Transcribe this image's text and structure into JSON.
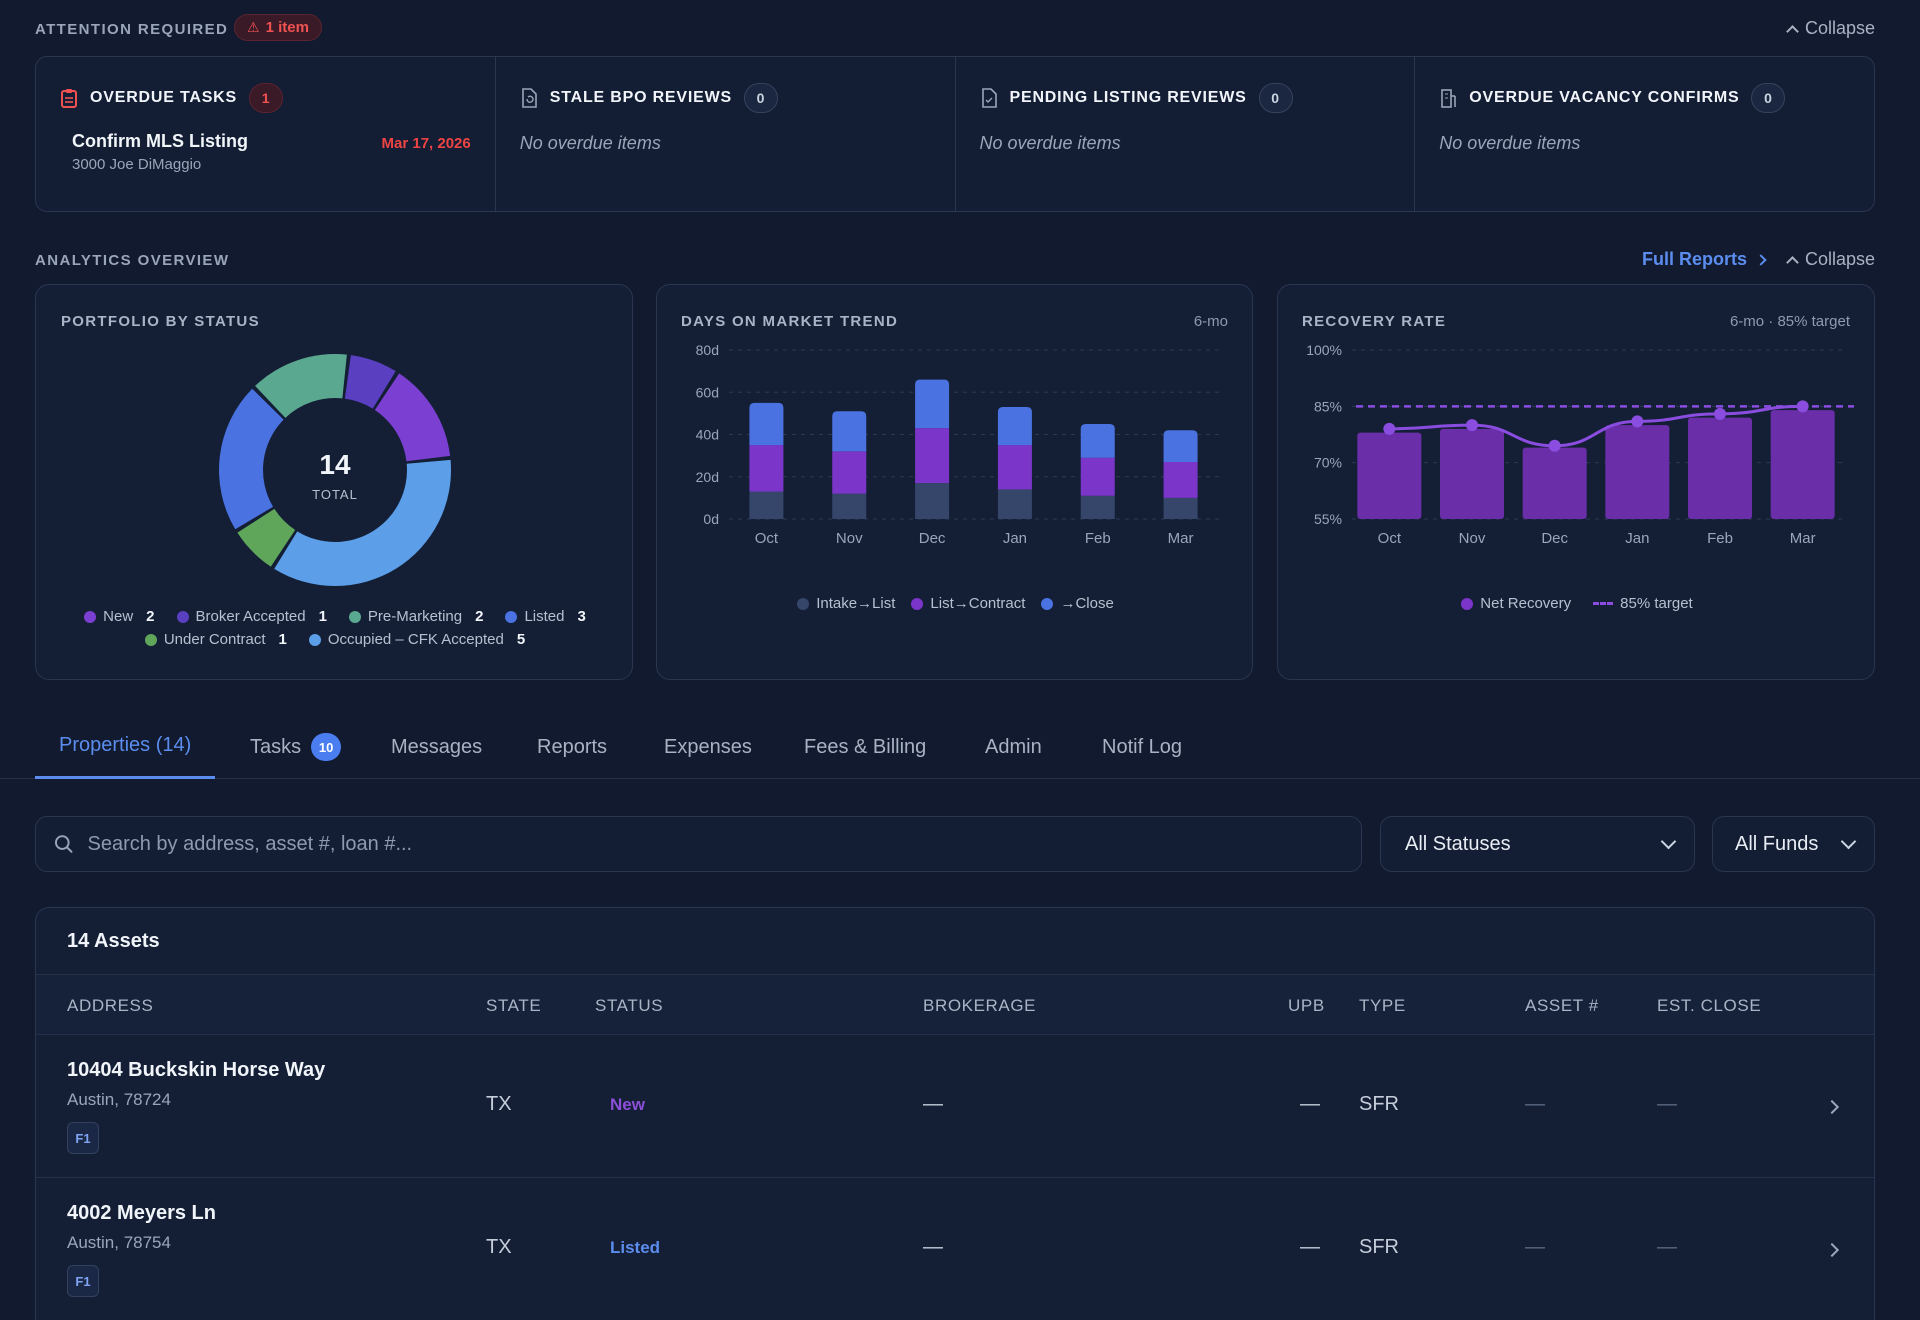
{
  "attention": {
    "label": "ATTENTION REQUIRED",
    "badge": "1 item",
    "collapse": "Collapse",
    "columns": [
      {
        "title": "OVERDUE TASKS",
        "count": "1",
        "icon": "clipboard-icon"
      },
      {
        "title": "STALE BPO REVIEWS",
        "count": "0",
        "icon": "document-refresh-icon",
        "empty": "No overdue items"
      },
      {
        "title": "PENDING LISTING REVIEWS",
        "count": "0",
        "icon": "document-check-icon",
        "empty": "No overdue items"
      },
      {
        "title": "OVERDUE VACANCY CONFIRMS",
        "count": "0",
        "icon": "building-icon",
        "empty": "No overdue items"
      }
    ],
    "task": {
      "title": "Confirm MLS Listing",
      "address": "3000 Joe DiMaggio",
      "date": "Mar 17, 2026"
    }
  },
  "analytics": {
    "label": "ANALYTICS OVERVIEW",
    "full_reports": "Full Reports",
    "collapse": "Collapse"
  },
  "portfolio": {
    "title": "PORTFOLIO BY STATUS",
    "total": "14",
    "total_label": "TOTAL",
    "legend": [
      {
        "name": "New",
        "count": "2",
        "color": "#7b3fd1"
      },
      {
        "name": "Broker Accepted",
        "count": "1",
        "color": "#5a3fc0"
      },
      {
        "name": "Pre-Marketing",
        "count": "2",
        "color": "#5aa890"
      },
      {
        "name": "Listed",
        "count": "3",
        "color": "#4a72e0"
      },
      {
        "name": "Under Contract",
        "count": "1",
        "color": "#5fa65a"
      },
      {
        "name": "Occupied – CFK Accepted",
        "count": "5",
        "color": "#5c9ee8"
      }
    ]
  },
  "chart_data": [
    {
      "type": "bar",
      "title": "DAYS ON MARKET TREND",
      "subtitle": "6-mo",
      "stacked": true,
      "categories": [
        "Oct",
        "Nov",
        "Dec",
        "Jan",
        "Feb",
        "Mar"
      ],
      "yticks": [
        "0d",
        "20d",
        "40d",
        "60d",
        "80d"
      ],
      "ylim": [
        0,
        80
      ],
      "series": [
        {
          "name": "Intake→List",
          "color": "#35466a",
          "values": [
            13,
            12,
            17,
            14,
            11,
            10
          ]
        },
        {
          "name": "List→Contract",
          "color": "#7b35c9",
          "values": [
            22,
            20,
            26,
            21,
            18,
            17
          ]
        },
        {
          "name": "→Close",
          "color": "#4a72e0",
          "values": [
            20,
            19,
            23,
            18,
            16,
            15
          ]
        }
      ]
    },
    {
      "type": "bar",
      "title": "RECOVERY RATE",
      "subtitle": "6-mo · 85% target",
      "categories": [
        "Oct",
        "Nov",
        "Dec",
        "Jan",
        "Feb",
        "Mar"
      ],
      "yticks": [
        "55%",
        "70%",
        "85%",
        "100%"
      ],
      "ylim": [
        55,
        100
      ],
      "series": [
        {
          "name": "Net Recovery",
          "color": "#6a2ea8",
          "values": [
            78,
            79,
            74,
            80,
            82,
            84
          ]
        }
      ],
      "line": {
        "values": [
          79,
          80,
          74.5,
          81,
          83,
          85
        ]
      },
      "target": {
        "name": "85% target",
        "value": 85,
        "color": "#8a4de0"
      }
    }
  ],
  "tabs": [
    {
      "label": "Properties (14)",
      "active": true
    },
    {
      "label": "Tasks",
      "badge": "10"
    },
    {
      "label": "Messages"
    },
    {
      "label": "Reports"
    },
    {
      "label": "Expenses"
    },
    {
      "label": "Fees & Billing"
    },
    {
      "label": "Admin"
    },
    {
      "label": "Notif Log"
    }
  ],
  "search": {
    "placeholder": "Search by address, asset #, loan #..."
  },
  "filters": {
    "status": "All Statuses",
    "fund": "All Funds"
  },
  "table": {
    "title": "14 Assets",
    "headers": [
      "ADDRESS",
      "STATE",
      "STATUS",
      "BROKERAGE",
      "UPB",
      "TYPE",
      "ASSET #",
      "EST. CLOSE"
    ],
    "rows": [
      {
        "address": "10404 Buckskin Horse Way",
        "city": "Austin, 78724",
        "fund": "F1",
        "state": "TX",
        "status": "New",
        "brokerage": "—",
        "upb": "—",
        "type": "SFR",
        "asset": "—",
        "close": "—"
      },
      {
        "address": "4002 Meyers Ln",
        "city": "Austin, 78754",
        "fund": "F1",
        "state": "TX",
        "status": "Listed",
        "brokerage": "—",
        "upb": "—",
        "type": "SFR",
        "asset": "—",
        "close": "—"
      }
    ]
  }
}
